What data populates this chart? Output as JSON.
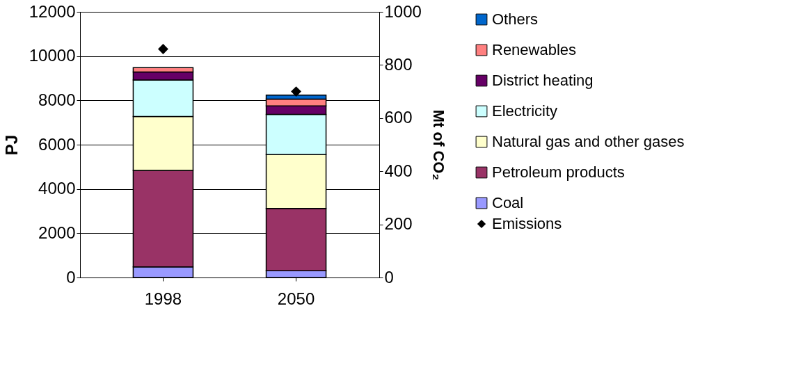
{
  "chart_data": {
    "type": "bar",
    "stacked": true,
    "categories": [
      "1998",
      "2050"
    ],
    "ylabel": "PJ",
    "y2label": "Mt of CO₂",
    "ylim": [
      0,
      12000
    ],
    "yticks": [
      0,
      2000,
      4000,
      6000,
      8000,
      10000,
      12000
    ],
    "y2lim": [
      0,
      1000
    ],
    "y2ticks": [
      0,
      200,
      400,
      600,
      800,
      1000
    ],
    "grid": "y",
    "legend": "right",
    "series": [
      {
        "name": "Coal",
        "color": "#9999ff",
        "values": [
          480,
          310
        ]
      },
      {
        "name": "Petroleum products",
        "color": "#993366",
        "values": [
          4360,
          2810
        ]
      },
      {
        "name": "Natural gas and other gases",
        "color": "#ffffcc",
        "values": [
          2430,
          2430
        ]
      },
      {
        "name": "Electricity",
        "color": "#ccffff",
        "values": [
          1650,
          1820
        ]
      },
      {
        "name": "District heating",
        "color": "#660066",
        "values": [
          360,
          380
        ]
      },
      {
        "name": "Renewables",
        "color": "#ff8080",
        "values": [
          200,
          310
        ]
      },
      {
        "name": "Others",
        "color": "#0066cc",
        "values": [
          null,
          180
        ]
      },
      {
        "name": "Emissions",
        "type": "scatter",
        "axis": "y2",
        "marker": "diamond",
        "color": "#000000",
        "values": [
          860,
          700
        ]
      }
    ]
  }
}
